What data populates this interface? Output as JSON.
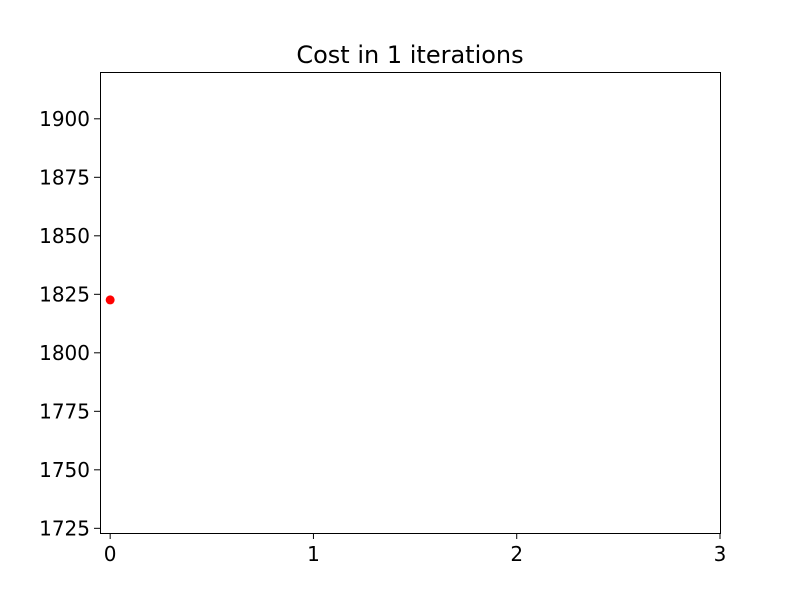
{
  "chart_data": {
    "type": "scatter",
    "title": "Cost in 1 iterations",
    "xlabel": "",
    "ylabel": "",
    "xlim": [
      -0.05,
      3.0
    ],
    "ylim": [
      1723,
      1920
    ],
    "xticks": [
      0,
      1,
      2,
      3
    ],
    "yticks": [
      1725,
      1750,
      1775,
      1800,
      1825,
      1850,
      1875,
      1900
    ],
    "grid": false,
    "series": [
      {
        "color": "#ff0000",
        "points": [
          {
            "x": 0,
            "y": 1822.6
          }
        ]
      }
    ]
  }
}
